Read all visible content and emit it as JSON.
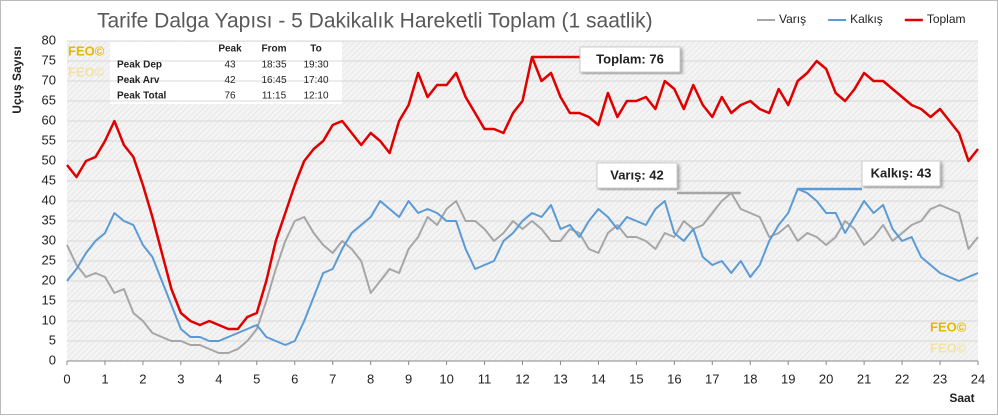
{
  "chart_data": {
    "type": "line",
    "title": "Tarife Dalga Yapısı - 5 Dakikalık Hareketli Toplam (1 saatlik)",
    "y_label": "Uçuş Sayısı",
    "x_label": "Saat",
    "watermark": "FEO©",
    "x": [
      0,
      0.25,
      0.5,
      0.75,
      1,
      1.25,
      1.5,
      1.75,
      2,
      2.25,
      2.5,
      2.75,
      3,
      3.25,
      3.5,
      3.75,
      4,
      4.25,
      4.5,
      4.75,
      5,
      5.25,
      5.5,
      5.75,
      6,
      6.25,
      6.5,
      6.75,
      7,
      7.25,
      7.5,
      7.75,
      8,
      8.25,
      8.5,
      8.75,
      9,
      9.25,
      9.5,
      9.75,
      10,
      10.25,
      10.5,
      10.75,
      11,
      11.25,
      11.5,
      11.75,
      12,
      12.25,
      12.5,
      12.75,
      13,
      13.25,
      13.5,
      13.75,
      14,
      14.25,
      14.5,
      14.75,
      15,
      15.25,
      15.5,
      15.75,
      16,
      16.25,
      16.5,
      16.75,
      17,
      17.25,
      17.5,
      17.75,
      18,
      18.25,
      18.5,
      18.75,
      19,
      19.25,
      19.5,
      19.75,
      20,
      20.25,
      20.5,
      20.75,
      21,
      21.25,
      21.5,
      21.75,
      22,
      22.25,
      22.5,
      22.75,
      23,
      23.25,
      23.5,
      23.75,
      24
    ],
    "series": [
      {
        "name": "Varış",
        "color": "#a6a6a6",
        "width": 2,
        "values": [
          29,
          24,
          21,
          22,
          21,
          17,
          18,
          12,
          10,
          7,
          6,
          5,
          5,
          4,
          4,
          3,
          2,
          2,
          3,
          5,
          8,
          15,
          23,
          30,
          35,
          36,
          32,
          29,
          27,
          30,
          28,
          25,
          17,
          20,
          23,
          22,
          28,
          31,
          36,
          34,
          38,
          40,
          35,
          35,
          33,
          30,
          32,
          35,
          33,
          35,
          33,
          30,
          30,
          33,
          32,
          28,
          27,
          32,
          34,
          31,
          31,
          30,
          28,
          32,
          31,
          35,
          33,
          34,
          37,
          40,
          42,
          38,
          37,
          36,
          31,
          32,
          34,
          30,
          32,
          31,
          29,
          31,
          35,
          33,
          29,
          31,
          34,
          30,
          32,
          34,
          35,
          38,
          39,
          38,
          37,
          28,
          31
        ]
      },
      {
        "name": "Kalkış",
        "color": "#5b9bd5",
        "width": 2,
        "values": [
          20,
          23,
          27,
          30,
          32,
          37,
          35,
          34,
          29,
          26,
          20,
          14,
          8,
          6,
          6,
          5,
          5,
          6,
          7,
          8,
          9,
          6,
          5,
          4,
          5,
          10,
          16,
          22,
          23,
          28,
          32,
          34,
          36,
          40,
          38,
          36,
          40,
          37,
          38,
          37,
          35,
          35,
          28,
          23,
          24,
          25,
          30,
          32,
          35,
          37,
          36,
          39,
          33,
          34,
          31,
          35,
          38,
          36,
          33,
          36,
          35,
          34,
          38,
          40,
          32,
          30,
          33,
          26,
          24,
          25,
          22,
          25,
          21,
          24,
          30,
          34,
          37,
          43,
          42,
          40,
          37,
          37,
          32,
          36,
          40,
          37,
          39,
          33,
          30,
          31,
          26,
          24,
          22,
          21,
          20,
          21,
          22
        ]
      },
      {
        "name": "Toplam",
        "color": "#e00000",
        "width": 2.5,
        "values": [
          49,
          46,
          50,
          51,
          55,
          60,
          54,
          51,
          44,
          36,
          27,
          18,
          12,
          10,
          9,
          10,
          9,
          8,
          8,
          11,
          12,
          20,
          30,
          37,
          44,
          50,
          53,
          55,
          59,
          60,
          57,
          54,
          57,
          55,
          52,
          60,
          64,
          72,
          66,
          69,
          69,
          72,
          66,
          62,
          58,
          58,
          57,
          62,
          65,
          76,
          70,
          72,
          66,
          62,
          62,
          61,
          59,
          67,
          61,
          65,
          65,
          66,
          63,
          70,
          68,
          63,
          69,
          64,
          61,
          66,
          62,
          64,
          65,
          63,
          62,
          68,
          64,
          70,
          72,
          75,
          73,
          67,
          65,
          68,
          72,
          70,
          70,
          68,
          66,
          64,
          63,
          61,
          63,
          60,
          57,
          50,
          53
        ]
      }
    ],
    "xlim": [
      0,
      24
    ],
    "xticks": [
      0,
      1,
      2,
      3,
      4,
      5,
      6,
      7,
      8,
      9,
      10,
      11,
      12,
      13,
      14,
      15,
      16,
      17,
      18,
      19,
      20,
      21,
      22,
      23,
      24
    ],
    "ylim": [
      0,
      80
    ],
    "yticks": [
      0,
      5,
      10,
      15,
      20,
      25,
      30,
      35,
      40,
      45,
      50,
      55,
      60,
      65,
      70,
      75,
      80
    ],
    "grid": true,
    "legend": "top-right",
    "annotations": [
      {
        "text": "Toplam: 76",
        "series": 2,
        "x": 12.25,
        "value": 76
      },
      {
        "text": "Varış: 42",
        "series": 0,
        "x": 17.75,
        "value": 42
      },
      {
        "text": "Kalkış: 43",
        "series": 1,
        "x": 19.25,
        "value": 43
      }
    ],
    "peak_table": {
      "columns": [
        "Peak",
        "From",
        "To"
      ],
      "rows": [
        [
          "Peak Dep",
          "43",
          "18:35",
          "19:30"
        ],
        [
          "Peak Arv",
          "42",
          "16:45",
          "17:40"
        ],
        [
          "Peak Total",
          "76",
          "11:15",
          "12:10"
        ]
      ]
    }
  }
}
